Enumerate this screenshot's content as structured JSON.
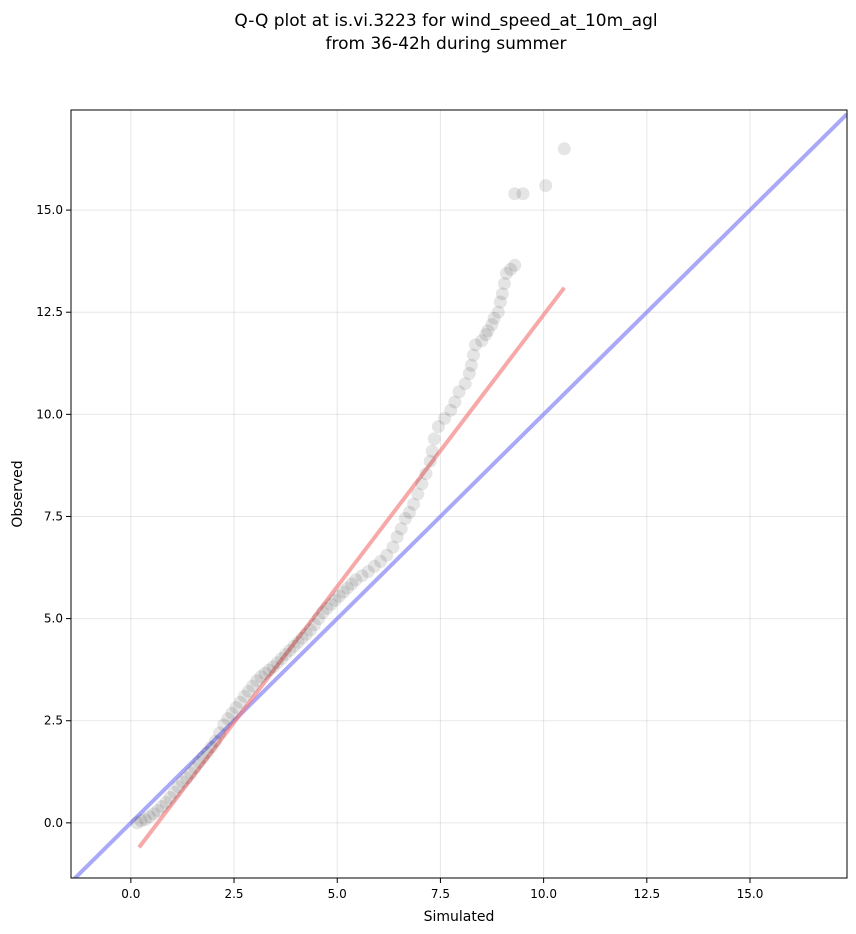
{
  "chart_data": {
    "type": "scatter",
    "title_line1": "Q-Q plot at is.vi.3223 for wind_speed_at_10m_agl",
    "title_line2": "from 36-42h during summer",
    "xlabel": "Simulated",
    "ylabel": "Observed",
    "xlim": [
      -1.45,
      17.35
    ],
    "ylim": [
      -1.35,
      17.45
    ],
    "xticks": [
      0.0,
      2.5,
      5.0,
      7.5,
      10.0,
      12.5,
      15.0
    ],
    "yticks": [
      0.0,
      2.5,
      5.0,
      7.5,
      10.0,
      12.5,
      15.0
    ],
    "xtick_labels": [
      "0.0",
      "2.5",
      "5.0",
      "7.5",
      "10.0",
      "12.5",
      "15.0"
    ],
    "ytick_labels": [
      "0.0",
      "2.5",
      "5.0",
      "7.5",
      "10.0",
      "12.5",
      "15.0"
    ],
    "grid": true,
    "colors": {
      "points": "#000000",
      "identity_line": "#7b7bf2",
      "fit_line": "#f27b7b"
    },
    "reference_line": {
      "name": "1:1 line",
      "slope": 1,
      "intercept": 0
    },
    "fit_line": {
      "x": [
        0.2,
        10.5
      ],
      "y": [
        -0.6,
        13.1
      ]
    },
    "points": [
      [
        0.15,
        0.0
      ],
      [
        0.25,
        0.05
      ],
      [
        0.35,
        0.08
      ],
      [
        0.45,
        0.15
      ],
      [
        0.55,
        0.22
      ],
      [
        0.65,
        0.3
      ],
      [
        0.75,
        0.4
      ],
      [
        0.85,
        0.5
      ],
      [
        0.95,
        0.62
      ],
      [
        1.05,
        0.75
      ],
      [
        1.15,
        0.88
      ],
      [
        1.25,
        1.0
      ],
      [
        1.35,
        1.1
      ],
      [
        1.45,
        1.22
      ],
      [
        1.55,
        1.35
      ],
      [
        1.65,
        1.48
      ],
      [
        1.75,
        1.6
      ],
      [
        1.85,
        1.72
      ],
      [
        1.95,
        1.85
      ],
      [
        2.05,
        2.0
      ],
      [
        2.15,
        2.2
      ],
      [
        2.25,
        2.4
      ],
      [
        2.35,
        2.55
      ],
      [
        2.45,
        2.68
      ],
      [
        2.55,
        2.82
      ],
      [
        2.65,
        2.95
      ],
      [
        2.75,
        3.1
      ],
      [
        2.85,
        3.22
      ],
      [
        2.95,
        3.35
      ],
      [
        3.05,
        3.48
      ],
      [
        3.15,
        3.58
      ],
      [
        3.25,
        3.66
      ],
      [
        3.35,
        3.74
      ],
      [
        3.45,
        3.82
      ],
      [
        3.55,
        3.92
      ],
      [
        3.65,
        4.02
      ],
      [
        3.75,
        4.12
      ],
      [
        3.85,
        4.22
      ],
      [
        3.95,
        4.32
      ],
      [
        4.05,
        4.42
      ],
      [
        4.15,
        4.52
      ],
      [
        4.25,
        4.62
      ],
      [
        4.35,
        4.72
      ],
      [
        4.45,
        4.85
      ],
      [
        4.55,
        5.0
      ],
      [
        4.65,
        5.15
      ],
      [
        4.75,
        5.25
      ],
      [
        4.85,
        5.35
      ],
      [
        4.95,
        5.45
      ],
      [
        5.05,
        5.55
      ],
      [
        5.15,
        5.65
      ],
      [
        5.25,
        5.75
      ],
      [
        5.35,
        5.85
      ],
      [
        5.45,
        5.95
      ],
      [
        5.6,
        6.05
      ],
      [
        5.75,
        6.15
      ],
      [
        5.9,
        6.28
      ],
      [
        6.05,
        6.4
      ],
      [
        6.2,
        6.55
      ],
      [
        6.35,
        6.75
      ],
      [
        6.45,
        7.0
      ],
      [
        6.55,
        7.2
      ],
      [
        6.65,
        7.45
      ],
      [
        6.75,
        7.6
      ],
      [
        6.85,
        7.8
      ],
      [
        6.95,
        8.05
      ],
      [
        7.05,
        8.3
      ],
      [
        7.15,
        8.55
      ],
      [
        7.25,
        8.85
      ],
      [
        7.3,
        9.1
      ],
      [
        7.35,
        9.4
      ],
      [
        7.45,
        9.7
      ],
      [
        7.6,
        9.9
      ],
      [
        7.75,
        10.1
      ],
      [
        7.85,
        10.3
      ],
      [
        7.95,
        10.55
      ],
      [
        8.1,
        10.75
      ],
      [
        8.2,
        11.0
      ],
      [
        8.25,
        11.2
      ],
      [
        8.3,
        11.45
      ],
      [
        8.35,
        11.7
      ],
      [
        8.5,
        11.8
      ],
      [
        8.6,
        11.95
      ],
      [
        8.65,
        12.05
      ],
      [
        8.75,
        12.2
      ],
      [
        8.8,
        12.35
      ],
      [
        8.9,
        12.5
      ],
      [
        8.95,
        12.75
      ],
      [
        9.0,
        12.95
      ],
      [
        9.05,
        13.2
      ],
      [
        9.1,
        13.45
      ],
      [
        9.2,
        13.55
      ],
      [
        9.3,
        13.65
      ],
      [
        9.3,
        15.4
      ],
      [
        9.5,
        15.4
      ],
      [
        10.05,
        15.6
      ],
      [
        10.5,
        16.5
      ]
    ]
  }
}
